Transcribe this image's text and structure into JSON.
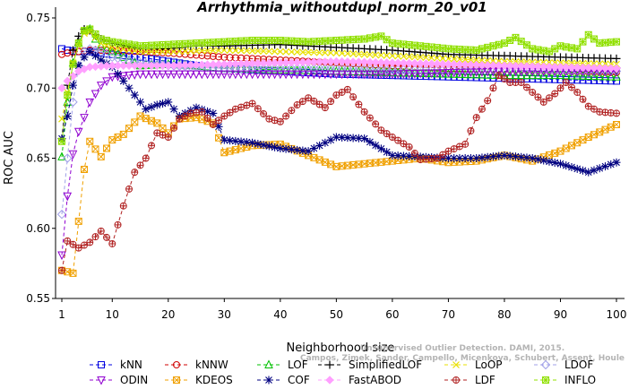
{
  "chart_data": {
    "type": "line",
    "title": "Arrhythmia_withoutdupl_norm_20_v01",
    "xlabel": "Neighborhood size",
    "ylabel": "ROC AUC",
    "xlim": [
      1,
      100
    ],
    "ylim": [
      0.55,
      0.75
    ],
    "x_ticks": [
      1,
      10,
      20,
      30,
      40,
      50,
      60,
      70,
      80,
      90,
      100
    ],
    "y_ticks": [
      0.55,
      0.6,
      0.65,
      0.7,
      0.75
    ],
    "y_tick_labels": [
      "0.55",
      "0.60",
      "0.65",
      "0.70",
      "0.75"
    ],
    "grid": false,
    "legend_position": "bottom",
    "watermark": [
      "Unsupervised Outlier Detection. DAMI, 2015.",
      "Campos, Zimek, Sander, Campello, Micenkova, Schubert, Assent, Houle"
    ],
    "series": [
      {
        "name": "kNN",
        "color": "#0000e0",
        "marker": "square",
        "points": [
          [
            1,
            0.728
          ],
          [
            2,
            0.727
          ],
          [
            4,
            0.726
          ],
          [
            6,
            0.726
          ],
          [
            10,
            0.724
          ],
          [
            15,
            0.722
          ],
          [
            20,
            0.719
          ],
          [
            25,
            0.716
          ],
          [
            30,
            0.714
          ],
          [
            40,
            0.712
          ],
          [
            50,
            0.71
          ],
          [
            60,
            0.709
          ],
          [
            70,
            0.708
          ],
          [
            80,
            0.707
          ],
          [
            90,
            0.706
          ],
          [
            100,
            0.705
          ]
        ]
      },
      {
        "name": "kNNW",
        "color": "#d00000",
        "marker": "circle",
        "points": [
          [
            1,
            0.724
          ],
          [
            2,
            0.725
          ],
          [
            4,
            0.726
          ],
          [
            6,
            0.727
          ],
          [
            10,
            0.727
          ],
          [
            15,
            0.726
          ],
          [
            20,
            0.725
          ],
          [
            30,
            0.722
          ],
          [
            40,
            0.72
          ],
          [
            50,
            0.718
          ],
          [
            60,
            0.716
          ],
          [
            70,
            0.714
          ],
          [
            80,
            0.713
          ],
          [
            90,
            0.712
          ],
          [
            100,
            0.711
          ]
        ]
      },
      {
        "name": "LOF",
        "color": "#00c000",
        "marker": "triangle-up",
        "points": [
          [
            1,
            0.651
          ],
          [
            2,
            0.69
          ],
          [
            3,
            0.718
          ],
          [
            4,
            0.732
          ],
          [
            5,
            0.741
          ],
          [
            6,
            0.742
          ],
          [
            7,
            0.735
          ],
          [
            8,
            0.73
          ],
          [
            10,
            0.726
          ],
          [
            12,
            0.722
          ],
          [
            15,
            0.716
          ],
          [
            20,
            0.717
          ],
          [
            25,
            0.716
          ],
          [
            30,
            0.714
          ],
          [
            40,
            0.713
          ],
          [
            50,
            0.712
          ],
          [
            60,
            0.711
          ],
          [
            70,
            0.71
          ],
          [
            80,
            0.709
          ],
          [
            90,
            0.709
          ],
          [
            100,
            0.708
          ]
        ]
      },
      {
        "name": "SimplifiedLOF",
        "color": "#000000",
        "marker": "plus",
        "points": [
          [
            1,
            0.664
          ],
          [
            2,
            0.702
          ],
          [
            3,
            0.727
          ],
          [
            4,
            0.737
          ],
          [
            5,
            0.742
          ],
          [
            6,
            0.741
          ],
          [
            8,
            0.735
          ],
          [
            10,
            0.732
          ],
          [
            15,
            0.728
          ],
          [
            20,
            0.728
          ],
          [
            25,
            0.73
          ],
          [
            30,
            0.73
          ],
          [
            40,
            0.731
          ],
          [
            50,
            0.729
          ],
          [
            60,
            0.727
          ],
          [
            70,
            0.724
          ],
          [
            80,
            0.723
          ],
          [
            90,
            0.722
          ],
          [
            100,
            0.721
          ]
        ]
      },
      {
        "name": "LoOP",
        "color": "#e8e000",
        "marker": "x",
        "points": [
          [
            1,
            0.678
          ],
          [
            2,
            0.697
          ],
          [
            3,
            0.718
          ],
          [
            4,
            0.73
          ],
          [
            5,
            0.739
          ],
          [
            6,
            0.74
          ],
          [
            8,
            0.732
          ],
          [
            10,
            0.729
          ],
          [
            15,
            0.726
          ],
          [
            20,
            0.726
          ],
          [
            30,
            0.727
          ],
          [
            40,
            0.726
          ],
          [
            50,
            0.725
          ],
          [
            60,
            0.723
          ],
          [
            70,
            0.721
          ],
          [
            80,
            0.719
          ],
          [
            90,
            0.718
          ],
          [
            100,
            0.717
          ]
        ]
      },
      {
        "name": "LDOF",
        "color": "#a0a0e8",
        "marker": "diamond",
        "points": [
          [
            1,
            0.61
          ],
          [
            2,
            0.65
          ],
          [
            3,
            0.69
          ],
          [
            4,
            0.716
          ],
          [
            5,
            0.726
          ],
          [
            6,
            0.728
          ],
          [
            8,
            0.726
          ],
          [
            10,
            0.722
          ],
          [
            15,
            0.718
          ],
          [
            20,
            0.716
          ],
          [
            30,
            0.714
          ],
          [
            40,
            0.714
          ],
          [
            50,
            0.714
          ],
          [
            60,
            0.713
          ],
          [
            70,
            0.713
          ],
          [
            80,
            0.713
          ],
          [
            90,
            0.712
          ],
          [
            100,
            0.712
          ]
        ]
      },
      {
        "name": "ODIN",
        "color": "#9000d0",
        "marker": "triangle-down",
        "points": [
          [
            1,
            0.581
          ],
          [
            2,
            0.623
          ],
          [
            3,
            0.653
          ],
          [
            4,
            0.669
          ],
          [
            5,
            0.679
          ],
          [
            6,
            0.69
          ],
          [
            8,
            0.702
          ],
          [
            10,
            0.708
          ],
          [
            15,
            0.71
          ],
          [
            20,
            0.71
          ],
          [
            30,
            0.71
          ],
          [
            40,
            0.71
          ],
          [
            50,
            0.71
          ],
          [
            60,
            0.71
          ],
          [
            70,
            0.711
          ],
          [
            80,
            0.712
          ],
          [
            90,
            0.712
          ],
          [
            100,
            0.712
          ]
        ]
      },
      {
        "name": "KDEOS",
        "color": "#f0a000",
        "marker": "square-x",
        "points": [
          [
            1,
            0.57
          ],
          [
            2,
            0.569
          ],
          [
            3,
            0.568
          ],
          [
            4,
            0.605
          ],
          [
            5,
            0.642
          ],
          [
            6,
            0.662
          ],
          [
            8,
            0.651
          ],
          [
            10,
            0.663
          ],
          [
            12,
            0.667
          ],
          [
            15,
            0.68
          ],
          [
            18,
            0.675
          ],
          [
            20,
            0.668
          ],
          [
            22,
            0.678
          ],
          [
            25,
            0.679
          ],
          [
            28,
            0.675
          ],
          [
            30,
            0.654
          ],
          [
            35,
            0.659
          ],
          [
            40,
            0.66
          ],
          [
            45,
            0.652
          ],
          [
            50,
            0.644
          ],
          [
            55,
            0.646
          ],
          [
            60,
            0.648
          ],
          [
            65,
            0.65
          ],
          [
            70,
            0.647
          ],
          [
            75,
            0.648
          ],
          [
            80,
            0.652
          ],
          [
            85,
            0.648
          ],
          [
            90,
            0.655
          ],
          [
            95,
            0.665
          ],
          [
            100,
            0.674
          ]
        ]
      },
      {
        "name": "COF",
        "color": "#000080",
        "marker": "asterisk",
        "points": [
          [
            1,
            0.664
          ],
          [
            2,
            0.68
          ],
          [
            3,
            0.702
          ],
          [
            4,
            0.716
          ],
          [
            5,
            0.722
          ],
          [
            6,
            0.726
          ],
          [
            8,
            0.72
          ],
          [
            10,
            0.715
          ],
          [
            12,
            0.705
          ],
          [
            14,
            0.695
          ],
          [
            16,
            0.685
          ],
          [
            18,
            0.688
          ],
          [
            20,
            0.69
          ],
          [
            22,
            0.68
          ],
          [
            25,
            0.686
          ],
          [
            28,
            0.682
          ],
          [
            30,
            0.663
          ],
          [
            35,
            0.661
          ],
          [
            40,
            0.657
          ],
          [
            45,
            0.655
          ],
          [
            50,
            0.665
          ],
          [
            55,
            0.664
          ],
          [
            60,
            0.652
          ],
          [
            65,
            0.651
          ],
          [
            70,
            0.65
          ],
          [
            75,
            0.65
          ],
          [
            80,
            0.652
          ],
          [
            85,
            0.65
          ],
          [
            90,
            0.646
          ],
          [
            95,
            0.64
          ],
          [
            100,
            0.647
          ]
        ]
      },
      {
        "name": "FastABOD",
        "color": "#ffa0ff",
        "marker": "diamond-filled",
        "points": [
          [
            1,
            0.7
          ],
          [
            2,
            0.705
          ],
          [
            4,
            0.712
          ],
          [
            6,
            0.715
          ],
          [
            10,
            0.716
          ],
          [
            20,
            0.716
          ],
          [
            30,
            0.717
          ],
          [
            40,
            0.718
          ],
          [
            50,
            0.719
          ],
          [
            60,
            0.718
          ],
          [
            70,
            0.717
          ],
          [
            80,
            0.716
          ],
          [
            90,
            0.715
          ],
          [
            100,
            0.714
          ]
        ]
      },
      {
        "name": "LDF",
        "color": "#b02020",
        "marker": "circle-plus",
        "points": [
          [
            1,
            0.57
          ],
          [
            2,
            0.591
          ],
          [
            4,
            0.586
          ],
          [
            6,
            0.59
          ],
          [
            8,
            0.598
          ],
          [
            10,
            0.589
          ],
          [
            12,
            0.616
          ],
          [
            14,
            0.64
          ],
          [
            16,
            0.65
          ],
          [
            18,
            0.668
          ],
          [
            20,
            0.665
          ],
          [
            22,
            0.678
          ],
          [
            24,
            0.682
          ],
          [
            26,
            0.683
          ],
          [
            28,
            0.674
          ],
          [
            30,
            0.68
          ],
          [
            32,
            0.685
          ],
          [
            35,
            0.689
          ],
          [
            38,
            0.678
          ],
          [
            40,
            0.676
          ],
          [
            43,
            0.688
          ],
          [
            45,
            0.693
          ],
          [
            48,
            0.686
          ],
          [
            50,
            0.695
          ],
          [
            52,
            0.699
          ],
          [
            55,
            0.683
          ],
          [
            58,
            0.67
          ],
          [
            60,
            0.665
          ],
          [
            63,
            0.658
          ],
          [
            65,
            0.649
          ],
          [
            68,
            0.65
          ],
          [
            70,
            0.655
          ],
          [
            73,
            0.66
          ],
          [
            75,
            0.679
          ],
          [
            77,
            0.691
          ],
          [
            79,
            0.709
          ],
          [
            81,
            0.704
          ],
          [
            83,
            0.704
          ],
          [
            85,
            0.697
          ],
          [
            87,
            0.69
          ],
          [
            89,
            0.696
          ],
          [
            91,
            0.704
          ],
          [
            93,
            0.697
          ],
          [
            95,
            0.687
          ],
          [
            97,
            0.683
          ],
          [
            100,
            0.682
          ]
        ]
      },
      {
        "name": "INFLO",
        "color": "#90e000",
        "marker": "square-star",
        "points": [
          [
            1,
            0.662
          ],
          [
            2,
            0.695
          ],
          [
            3,
            0.717
          ],
          [
            4,
            0.732
          ],
          [
            5,
            0.741
          ],
          [
            6,
            0.742
          ],
          [
            8,
            0.735
          ],
          [
            10,
            0.733
          ],
          [
            15,
            0.73
          ],
          [
            20,
            0.731
          ],
          [
            25,
            0.732
          ],
          [
            30,
            0.733
          ],
          [
            35,
            0.734
          ],
          [
            40,
            0.734
          ],
          [
            45,
            0.733
          ],
          [
            50,
            0.734
          ],
          [
            55,
            0.735
          ],
          [
            58,
            0.737
          ],
          [
            60,
            0.732
          ],
          [
            65,
            0.73
          ],
          [
            70,
            0.728
          ],
          [
            75,
            0.727
          ],
          [
            80,
            0.732
          ],
          [
            82,
            0.736
          ],
          [
            85,
            0.728
          ],
          [
            88,
            0.726
          ],
          [
            90,
            0.73
          ],
          [
            93,
            0.728
          ],
          [
            95,
            0.738
          ],
          [
            97,
            0.732
          ],
          [
            100,
            0.733
          ]
        ]
      }
    ]
  }
}
